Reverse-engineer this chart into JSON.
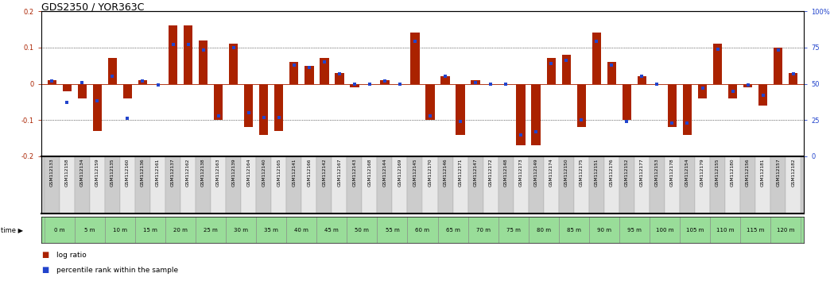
{
  "title": "GDS2350 / YOR363C",
  "gsm_ids": [
    "GSM112133",
    "GSM112158",
    "GSM112134",
    "GSM112159",
    "GSM112135",
    "GSM112160",
    "GSM112136",
    "GSM112161",
    "GSM112137",
    "GSM112162",
    "GSM112138",
    "GSM112163",
    "GSM112139",
    "GSM112164",
    "GSM112140",
    "GSM112165",
    "GSM112141",
    "GSM112166",
    "GSM112142",
    "GSM112167",
    "GSM112143",
    "GSM112168",
    "GSM112144",
    "GSM112169",
    "GSM112145",
    "GSM112170",
    "GSM112146",
    "GSM112171",
    "GSM112147",
    "GSM112172",
    "GSM112148",
    "GSM112173",
    "GSM112149",
    "GSM112174",
    "GSM112150",
    "GSM112175",
    "GSM112151",
    "GSM112176",
    "GSM112152",
    "GSM112177",
    "GSM112153",
    "GSM112178",
    "GSM112154",
    "GSM112179",
    "GSM112155",
    "GSM112180",
    "GSM112156",
    "GSM112181",
    "GSM112157",
    "GSM112182"
  ],
  "time_labels": [
    "0 m",
    "5 m",
    "10 m",
    "15 m",
    "20 m",
    "25 m",
    "30 m",
    "35 m",
    "40 m",
    "45 m",
    "50 m",
    "55 m",
    "60 m",
    "65 m",
    "70 m",
    "75 m",
    "80 m",
    "85 m",
    "90 m",
    "95 m",
    "100 m",
    "105 m",
    "110 m",
    "115 m",
    "120 m"
  ],
  "log_ratio": [
    0.01,
    -0.02,
    -0.04,
    -0.13,
    0.07,
    -0.04,
    0.01,
    0.0,
    0.16,
    0.16,
    0.12,
    -0.1,
    0.11,
    -0.12,
    -0.14,
    -0.13,
    0.06,
    0.05,
    0.07,
    0.03,
    -0.01,
    0.0,
    0.01,
    0.0,
    0.14,
    -0.1,
    0.02,
    -0.14,
    0.01,
    0.0,
    0.0,
    -0.17,
    -0.17,
    0.07,
    0.08,
    -0.12,
    0.14,
    0.06,
    -0.1,
    0.02,
    0.0,
    -0.12,
    -0.14,
    -0.04,
    0.11,
    -0.04,
    -0.01,
    -0.06,
    0.1,
    0.03
  ],
  "percentile": [
    52,
    37,
    51,
    38,
    55,
    26,
    52,
    49,
    77,
    77,
    73,
    28,
    75,
    30,
    27,
    27,
    63,
    61,
    65,
    57,
    50,
    50,
    52,
    50,
    79,
    28,
    55,
    24,
    51,
    50,
    50,
    15,
    17,
    64,
    66,
    25,
    79,
    63,
    24,
    55,
    50,
    23,
    23,
    47,
    74,
    45,
    49,
    42,
    73,
    57
  ],
  "ylim": [
    -0.2,
    0.2
  ],
  "yticks": [
    -0.2,
    -0.1,
    0.0,
    0.1,
    0.2
  ],
  "right_yticks": [
    0,
    25,
    50,
    75,
    100
  ],
  "bar_color": "#aa2200",
  "dot_color": "#2244cc",
  "title_fontsize": 9,
  "tick_fontsize": 6,
  "time_bg_color": "#99dd99",
  "gsm_bg_even": "#cccccc",
  "gsm_bg_odd": "#e8e8e8",
  "separator_color": "#111111"
}
